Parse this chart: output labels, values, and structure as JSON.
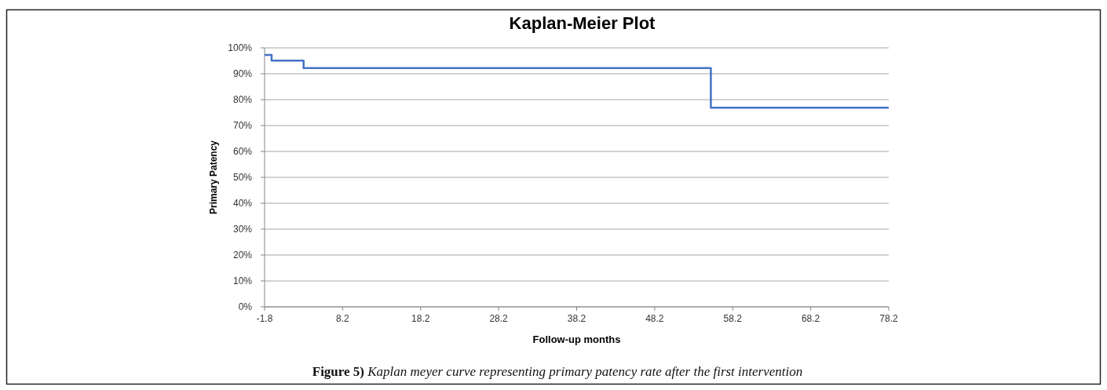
{
  "chart_data": {
    "type": "step",
    "title": "Kaplan-Meier Plot",
    "xlabel": "Follow-up months",
    "ylabel": "Primary Patency",
    "x": [
      -1.8,
      -0.9,
      3.2,
      55.4,
      78.2
    ],
    "series": [
      {
        "color": "#4472c4",
        "values": [
          97.3,
          95.1,
          92.2,
          76.9,
          76.9
        ]
      }
    ],
    "xlim": [
      -1.8,
      78.2
    ],
    "xticks": [
      -1.8,
      8.2,
      18.2,
      28.2,
      38.2,
      48.2,
      58.2,
      68.2,
      78.2
    ],
    "ylim": [
      0,
      100
    ],
    "yticks": [
      {
        "value": 0,
        "label": "0%"
      },
      {
        "value": 10,
        "label": "10%"
      },
      {
        "value": 20,
        "label": "20%"
      },
      {
        "value": 30,
        "label": "30%"
      },
      {
        "value": 40,
        "label": "40%"
      },
      {
        "value": 50,
        "label": "50%"
      },
      {
        "value": 60,
        "label": "60%"
      },
      {
        "value": 70,
        "label": "70%"
      },
      {
        "value": 80,
        "label": "80%"
      },
      {
        "value": 90,
        "label": "90%"
      },
      {
        "value": 100,
        "label": "100%"
      }
    ],
    "grid": "y",
    "marker": "none",
    "line_style": "solid",
    "annotations": [
      "Figure 5) Kaplan meyer curve representing primary patency rate after the first intervention"
    ]
  }
}
